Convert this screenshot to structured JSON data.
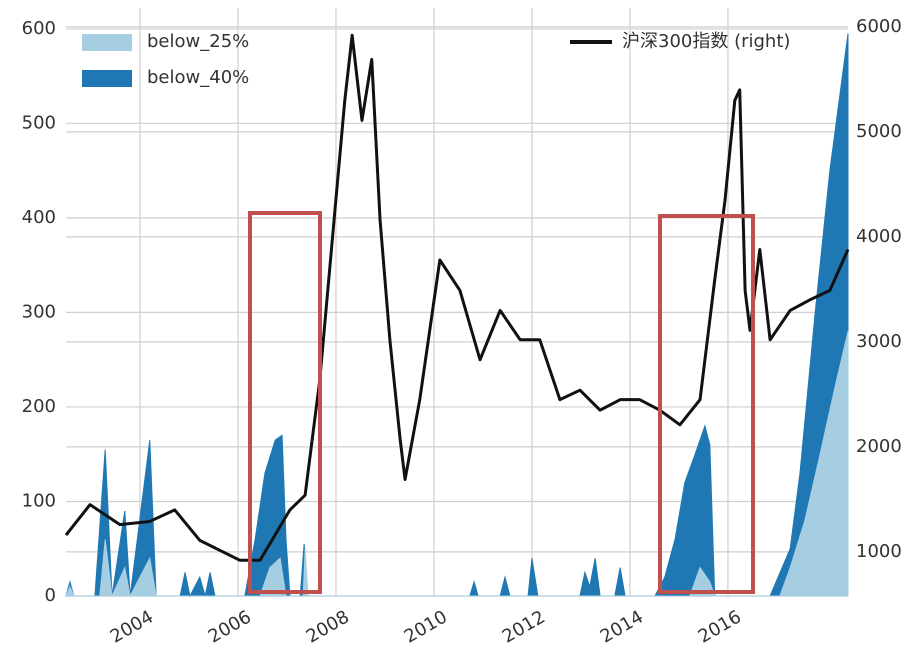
{
  "chart_data": {
    "type": "area_line",
    "xlim": [
      2002.49,
      2018.45
    ],
    "xticks": [
      2004,
      2006,
      2008,
      2010,
      2012,
      2014,
      2016
    ],
    "ylim": [
      0,
      622
    ],
    "yticks": [
      0,
      100,
      200,
      300,
      400,
      500,
      600
    ],
    "y2lim": [
      580,
      6180
    ],
    "y2ticks": [
      1000,
      2000,
      3000,
      4000,
      5000,
      6000
    ],
    "grid": true,
    "series": [
      {
        "name": "below_25%",
        "type": "area",
        "color": "#a6cee3",
        "x": [
          2002.49,
          2002.57,
          2002.65,
          2003.18,
          2003.29,
          2003.43,
          2003.69,
          2003.8,
          2004.2,
          2004.33,
          2006.45,
          2006.65,
          2006.86,
          2006.98,
          2007.33,
          2007.37,
          2007.43,
          2015.22,
          2015.43,
          2015.63,
          2015.73,
          2017.06,
          2017.27,
          2017.57,
          2017.88,
          2018.18,
          2018.45
        ],
        "values": [
          0,
          10,
          0,
          0,
          60,
          0,
          30,
          0,
          40,
          0,
          0,
          30,
          40,
          0,
          0,
          50,
          0,
          0,
          30,
          15,
          0,
          0,
          30,
          80,
          150,
          220,
          280
        ]
      },
      {
        "name": "below_40%",
        "type": "area",
        "color": "#1f78b4",
        "x": [
          2002.49,
          2002.57,
          2002.65,
          2003.08,
          2003.29,
          2003.43,
          2003.69,
          2003.8,
          2004.2,
          2004.33,
          2004.82,
          2004.92,
          2005.02,
          2005.22,
          2005.33,
          2005.43,
          2005.53,
          2006.14,
          2006.35,
          2006.55,
          2006.76,
          2006.9,
          2006.98,
          2007.06,
          2007.27,
          2007.35,
          2007.43,
          2010.73,
          2010.82,
          2010.9,
          2011.35,
          2011.45,
          2011.55,
          2011.92,
          2012.0,
          2012.12,
          2012.98,
          2013.08,
          2013.18,
          2013.29,
          2013.39,
          2013.69,
          2013.8,
          2013.9,
          2014.51,
          2014.71,
          2014.92,
          2015.12,
          2015.33,
          2015.53,
          2015.63,
          2015.73,
          2016.86,
          2017.27,
          2017.47,
          2017.78,
          2018.08,
          2018.45
        ],
        "values": [
          0,
          15,
          0,
          0,
          155,
          0,
          90,
          0,
          165,
          0,
          0,
          25,
          0,
          20,
          0,
          25,
          0,
          0,
          60,
          130,
          165,
          170,
          60,
          0,
          0,
          55,
          0,
          0,
          15,
          0,
          0,
          20,
          0,
          0,
          40,
          0,
          0,
          25,
          10,
          40,
          0,
          0,
          30,
          0,
          0,
          20,
          60,
          120,
          150,
          180,
          160,
          0,
          0,
          50,
          130,
          300,
          450,
          595
        ]
      },
      {
        "name": "沪深300指数 (right)",
        "type": "line",
        "axis": "y2",
        "color": "#111111",
        "x": [
          2002.49,
          2002.98,
          2003.59,
          2004.2,
          2004.71,
          2005.22,
          2006.04,
          2006.45,
          2007.06,
          2007.37,
          2007.67,
          2007.98,
          2008.18,
          2008.33,
          2008.53,
          2008.73,
          2008.9,
          2009.1,
          2009.31,
          2009.41,
          2009.71,
          2010.12,
          2010.53,
          2010.94,
          2011.35,
          2011.76,
          2012.16,
          2012.57,
          2012.98,
          2013.39,
          2013.8,
          2014.2,
          2014.61,
          2015.02,
          2015.43,
          2015.73,
          2015.94,
          2016.14,
          2016.24,
          2016.35,
          2016.45,
          2016.65,
          2016.86,
          2017.27,
          2017.67,
          2018.08,
          2018.45
        ],
        "values": [
          1160,
          1450,
          1260,
          1290,
          1400,
          1110,
          920,
          920,
          1400,
          1540,
          2640,
          4260,
          5300,
          5920,
          5110,
          5690,
          4160,
          3020,
          2070,
          1690,
          2450,
          3780,
          3490,
          2830,
          3300,
          3020,
          3020,
          2450,
          2540,
          2350,
          2450,
          2450,
          2350,
          2210,
          2450,
          3590,
          4350,
          5300,
          5400,
          3490,
          3110,
          3880,
          3020,
          3300,
          3400,
          3490,
          3880
        ]
      }
    ]
  }
}
